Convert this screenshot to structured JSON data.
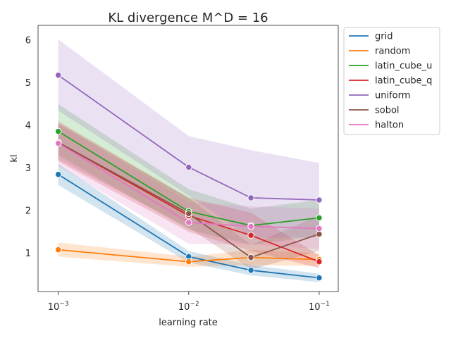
{
  "chart_data": {
    "type": "line",
    "title": "KL divergence M^D = 16",
    "xlabel": "learning rate",
    "ylabel": "kl",
    "xscale": "log",
    "x": [
      0.001,
      0.01,
      0.03,
      0.1
    ],
    "xlim": [
      0.0007,
      0.14
    ],
    "ylim": [
      0.1,
      6.35
    ],
    "x_ticks": [
      {
        "value": 0.001,
        "base": "10",
        "exp": "−3"
      },
      {
        "value": 0.01,
        "base": "10",
        "exp": "−2"
      },
      {
        "value": 0.1,
        "base": "10",
        "exp": "−1"
      }
    ],
    "y_ticks": [
      1,
      2,
      3,
      4,
      5,
      6
    ],
    "grid": false,
    "legend_position": "outside-top-right",
    "series": [
      {
        "name": "grid",
        "color": "#1f77b4",
        "values": [
          2.85,
          0.92,
          0.6,
          0.42
        ],
        "lower": [
          2.6,
          0.78,
          0.48,
          0.32
        ],
        "upper": [
          3.1,
          1.05,
          0.72,
          0.52
        ]
      },
      {
        "name": "random",
        "color": "#ff7f0e",
        "values": [
          1.08,
          0.8,
          0.9,
          0.85
        ],
        "lower": [
          0.92,
          0.68,
          0.72,
          0.7
        ],
        "upper": [
          1.25,
          0.92,
          1.08,
          1.0
        ]
      },
      {
        "name": "latin_cube_u",
        "color": "#2ca02c",
        "values": [
          3.86,
          1.98,
          1.65,
          1.83
        ],
        "lower": [
          3.3,
          1.55,
          1.2,
          1.4
        ],
        "upper": [
          4.5,
          2.5,
          2.05,
          2.25
        ]
      },
      {
        "name": "latin_cube_q",
        "color": "#d62728",
        "values": [
          3.6,
          1.88,
          1.42,
          0.8
        ],
        "lower": [
          3.15,
          1.5,
          1.05,
          0.65
        ],
        "upper": [
          4.1,
          2.3,
          1.95,
          0.95
        ]
      },
      {
        "name": "uniform",
        "color": "#9467bd",
        "values": [
          5.18,
          3.02,
          2.3,
          2.25
        ],
        "lower": [
          4.35,
          2.35,
          1.35,
          1.38
        ],
        "upper": [
          6.02,
          3.75,
          3.42,
          3.12
        ]
      },
      {
        "name": "sobol",
        "color": "#8c564b",
        "values": [
          3.6,
          1.93,
          0.9,
          1.45
        ],
        "lower": [
          3.2,
          1.6,
          0.62,
          1.05
        ],
        "upper": [
          4.05,
          2.3,
          1.2,
          1.88
        ]
      },
      {
        "name": "halton",
        "color": "#e377c2",
        "values": [
          3.58,
          1.72,
          1.63,
          1.58
        ],
        "lower": [
          3.05,
          1.22,
          1.2,
          1.1
        ],
        "upper": [
          4.05,
          2.2,
          2.1,
          2.05
        ]
      }
    ]
  }
}
